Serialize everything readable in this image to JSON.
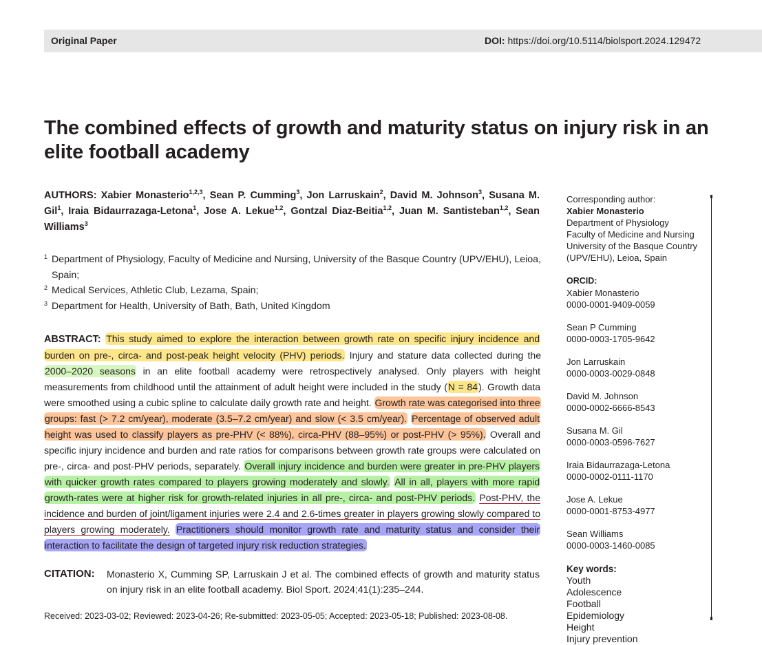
{
  "header": {
    "paper_type": "Original Paper",
    "doi_label": "DOI:",
    "doi_value": "https://doi.org/10.5114/biolsport.2024.129472"
  },
  "title": "The combined effects of growth and maturity status on injury risk in an elite football academy",
  "authors": {
    "label": "AUTHORS:",
    "list": [
      {
        "name": "Xabier Monasterio",
        "sup": "1,2,3"
      },
      {
        "name": "Sean P. Cumming",
        "sup": "3"
      },
      {
        "name": "Jon Larruskain",
        "sup": "2"
      },
      {
        "name": "David M. Johnson",
        "sup": "3"
      },
      {
        "name": "Susana M. Gil",
        "sup": "1"
      },
      {
        "name": "Iraia Bidaurrazaga-Letona",
        "sup": "1"
      },
      {
        "name": "Jose A. Lekue",
        "sup": "1,2"
      },
      {
        "name": "Gontzal Diaz-Beitia",
        "sup": "1,2"
      },
      {
        "name": "Juan M. Santisteban",
        "sup": "1,2"
      },
      {
        "name": "Sean Williams",
        "sup": "3"
      }
    ]
  },
  "affiliations": [
    {
      "num": "1",
      "text": "Department of Physiology, Faculty of Medicine and Nursing, University of the Basque Country (UPV/EHU), Leioa, Spain;"
    },
    {
      "num": "2",
      "text": "Medical Services, Athletic Club, Lezama, Spain;"
    },
    {
      "num": "3",
      "text": "Department for Health, University of Bath, Bath, United Kingdom"
    }
  ],
  "abstract": {
    "label": "ABSTRACT:",
    "s1": "This study aimed to explore the interaction between growth rate on specific injury incidence and burden on pre-, circa- and post-peak height velocity (PHV) periods.",
    "s2a": "Injury and stature data collected during the",
    "s2b": "2000–2020 seasons",
    "s2c": "in an elite football academy were retrospectively analysed. Only players with height measurements from childhood until the attainment of adult height were included in the study (",
    "s2d": "N = 84",
    "s2e": "). Growth data were smoothed using a cubic spline to calculate daily growth rate and height.",
    "s3": "Growth rate was categorised into three groups: fast (> 7.2 cm/year), moderate (3.5–7.2 cm/year) and slow (< 3.5 cm/year).",
    "s4": "Percentage of observed adult height was used to classify players as pre-PHV (< 88%), circa-PHV (88–95%) or post-PHV (> 95%).",
    "s5": "Overall and specific injury incidence and burden and rate ratios for comparisons between growth rate groups were calculated on pre-, circa- and post-PHV periods, separately.",
    "s6": "Overall injury incidence and burden were greater in pre-PHV players with quicker growth rates compared to players growing moderately and slowly.",
    "s7": "All in all, players with more rapid growth-rates were at higher risk for growth-related injuries in all pre-, circa- and post-PHV periods.",
    "s8": "Post-PHV, the incidence and burden of joint/ligament injuries were 2.4 and 2.6-times greater in players growing slowly compared to players growing moderately.",
    "s9": "Practitioners should monitor growth rate and maturity status and consider their interaction to facilitate the design of targeted injury risk reduction strategies."
  },
  "citation": {
    "label": "CITATION:",
    "text": "Monasterio X, Cumming SP, Larruskain J et al. The combined effects of growth and maturity status on injury risk in an elite football academy. Biol Sport. 2024;41(1):235–244."
  },
  "received": "Received: 2023-03-02; Reviewed: 2023-04-26; Re-submitted: 2023-05-05; Accepted: 2023-05-18; Published: 2023-08-08.",
  "sidebar": {
    "corr_label": "Corresponding author:",
    "corr_name": "Xabier Monasterio",
    "corr_lines": [
      "Department of Physiology",
      "Faculty of Medicine and Nursing",
      "University of the Basque Country",
      "(UPV/EHU), Leioa, Spain"
    ],
    "orcid_label": "ORCID:",
    "orcid": [
      {
        "name": "Xabier Monasterio",
        "id": "0000-0001-9409-0059"
      },
      {
        "name": "Sean P Cumming",
        "id": "0000-0003-1705-9642"
      },
      {
        "name": "Jon Larruskain",
        "id": "0000-0003-0029-0848"
      },
      {
        "name": "David M. Johnson",
        "id": "0000-0002-6666-8543"
      },
      {
        "name": "Susana M. Gil",
        "id": "0000-0003-0596-7627"
      },
      {
        "name": "Iraia Bidaurrazaga-Letona",
        "id": "0000-0002-0111-1170"
      },
      {
        "name": "Jose A. Lekue",
        "id": "0000-0001-8753-4977"
      },
      {
        "name": "Sean Williams",
        "id": "0000-0003-1460-0085"
      }
    ],
    "keywords_label": "Key words:",
    "keywords": [
      "Youth",
      "Adolescence",
      "Football",
      "Epidemiology",
      "Height",
      "Injury prevention"
    ]
  }
}
